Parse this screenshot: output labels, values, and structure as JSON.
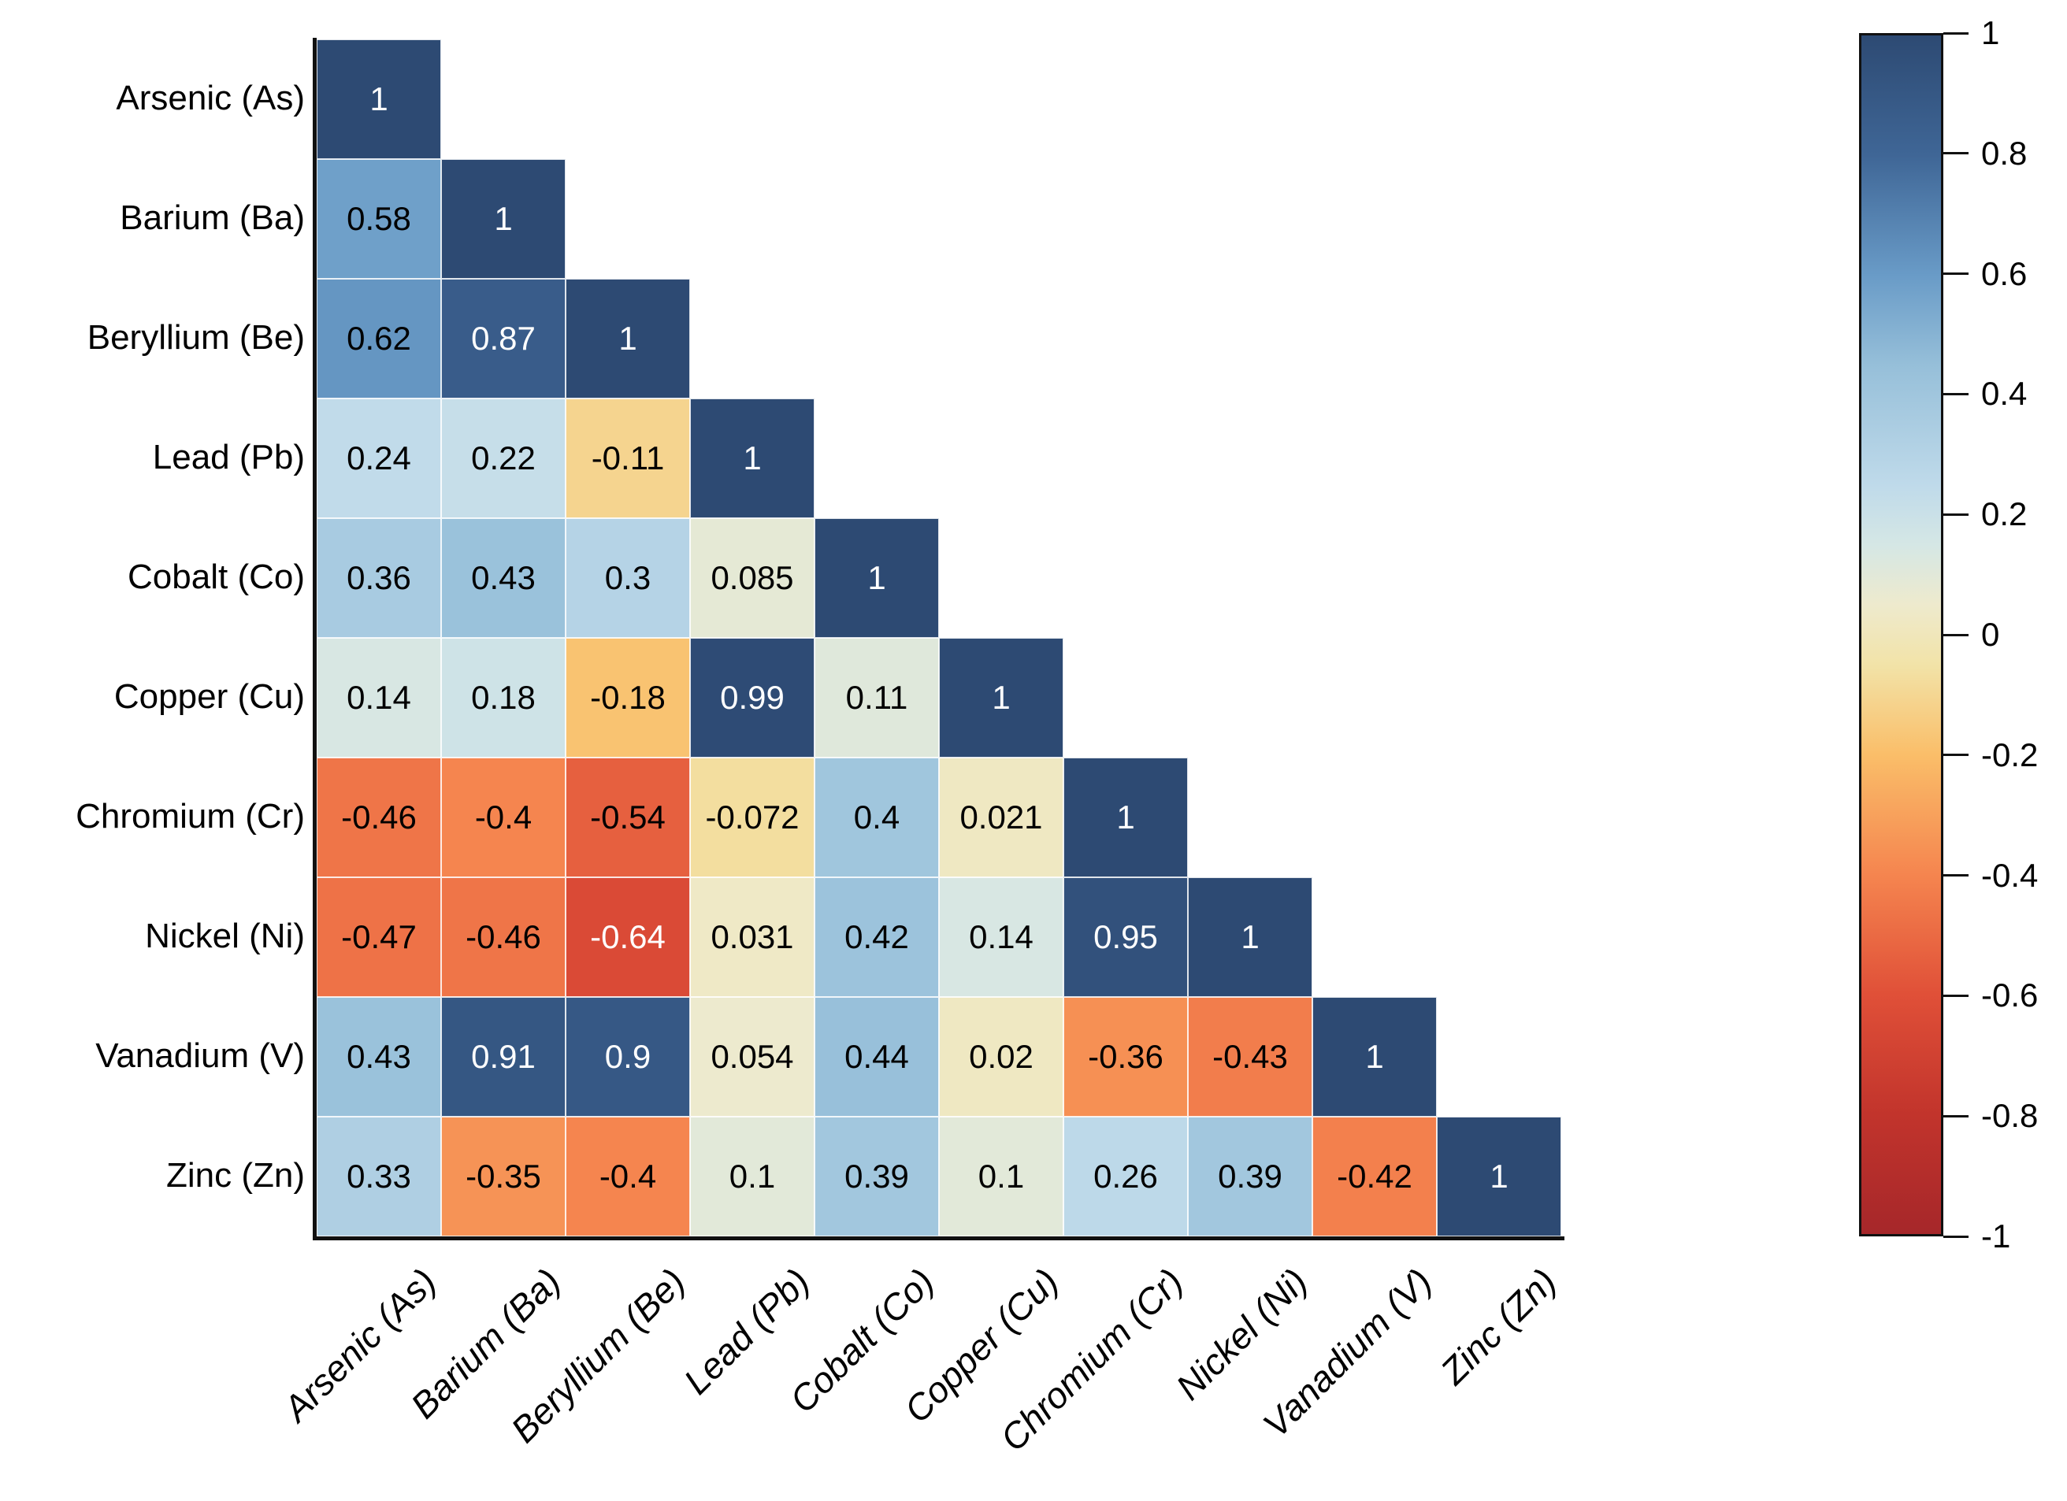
{
  "chart_data": {
    "type": "heatmap",
    "subtype": "correlation-matrix-lower-triangular",
    "title": "",
    "variables": [
      "Arsenic (As)",
      "Barium (Ba)",
      "Beryllium (Be)",
      "Lead (Pb)",
      "Cobalt (Co)",
      "Copper (Cu)",
      "Chromium (Cr)",
      "Nickel (Ni)",
      "Vanadium (V)",
      "Zinc (Zn)"
    ],
    "matrix": [
      [
        1
      ],
      [
        0.58,
        1
      ],
      [
        0.62,
        0.87,
        1
      ],
      [
        0.24,
        0.22,
        -0.11,
        1
      ],
      [
        0.36,
        0.43,
        0.3,
        0.085,
        1
      ],
      [
        0.14,
        0.18,
        -0.18,
        0.99,
        0.11,
        1
      ],
      [
        -0.46,
        -0.4,
        -0.54,
        -0.072,
        0.4,
        0.021,
        1
      ],
      [
        -0.47,
        -0.46,
        -0.64,
        0.031,
        0.42,
        0.14,
        0.95,
        1
      ],
      [
        0.43,
        0.91,
        0.9,
        0.054,
        0.44,
        0.02,
        -0.36,
        -0.43,
        1
      ],
      [
        0.33,
        -0.35,
        -0.4,
        0.1,
        0.39,
        0.1,
        0.26,
        0.39,
        -0.42,
        1
      ]
    ],
    "value_range": [
      -1,
      1
    ],
    "grid": false,
    "legend": "none",
    "colorbar": {
      "position": "right",
      "tick_labels": [
        "1",
        "0.8",
        "0.6",
        "0.4",
        "0.2",
        "0",
        "-0.2",
        "-0.4",
        "-0.6",
        "-0.8",
        "-1"
      ]
    },
    "colormap_stops": [
      {
        "v": -1.0,
        "color": "#a6272a"
      },
      {
        "v": -0.8,
        "color": "#c2342c"
      },
      {
        "v": -0.6,
        "color": "#e05038"
      },
      {
        "v": -0.4,
        "color": "#f5854f"
      },
      {
        "v": -0.2,
        "color": "#fabe69"
      },
      {
        "v": -0.05,
        "color": "#f2e3a8"
      },
      {
        "v": 0.05,
        "color": "#eeeacd"
      },
      {
        "v": 0.15,
        "color": "#d5e7e5"
      },
      {
        "v": 0.25,
        "color": "#bfdaea"
      },
      {
        "v": 0.45,
        "color": "#96bfd9"
      },
      {
        "v": 0.6,
        "color": "#699bc7"
      },
      {
        "v": 0.8,
        "color": "#3f6696"
      },
      {
        "v": 1.0,
        "color": "#2d4a73"
      }
    ],
    "cell_text_color_dark": "#000000",
    "cell_text_color_light": "#ffffff",
    "axis_color": "#111111",
    "background_color": "#ffffff"
  }
}
